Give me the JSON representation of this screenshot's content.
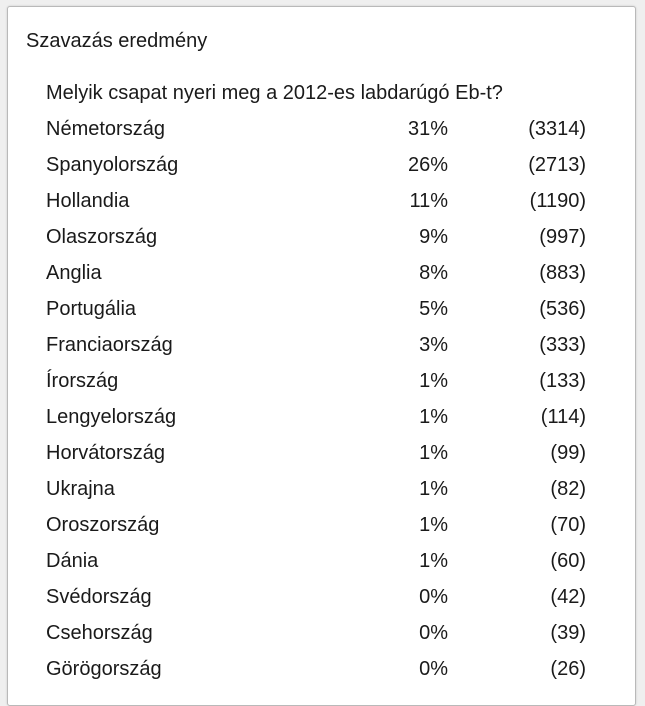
{
  "widget": {
    "title": "Szavazás eredmény",
    "question": "Melyik csapat nyeri meg a 2012-es labdarúgó Eb-t?"
  },
  "results": [
    {
      "name": "Németország",
      "percent": "31%",
      "votes": "(3314)"
    },
    {
      "name": "Spanyolország",
      "percent": "26%",
      "votes": "(2713)"
    },
    {
      "name": "Hollandia",
      "percent": "11%",
      "votes": "(1190)"
    },
    {
      "name": "Olaszország",
      "percent": "9%",
      "votes": "(997)"
    },
    {
      "name": "Anglia",
      "percent": "8%",
      "votes": "(883)"
    },
    {
      "name": "Portugália",
      "percent": "5%",
      "votes": "(536)"
    },
    {
      "name": "Franciaország",
      "percent": "3%",
      "votes": "(333)"
    },
    {
      "name": "Írország",
      "percent": "1%",
      "votes": "(133)"
    },
    {
      "name": "Lengyelország",
      "percent": "1%",
      "votes": "(114)"
    },
    {
      "name": "Horvátország",
      "percent": "1%",
      "votes": "(99)"
    },
    {
      "name": "Ukrajna",
      "percent": "1%",
      "votes": "(82)"
    },
    {
      "name": "Oroszország",
      "percent": "1%",
      "votes": "(70)"
    },
    {
      "name": "Dánia",
      "percent": "1%",
      "votes": "(60)"
    },
    {
      "name": "Svédország",
      "percent": "0%",
      "votes": "(42)"
    },
    {
      "name": "Csehország",
      "percent": "0%",
      "votes": "(39)"
    },
    {
      "name": "Görögország",
      "percent": "0%",
      "votes": "(26)"
    }
  ]
}
